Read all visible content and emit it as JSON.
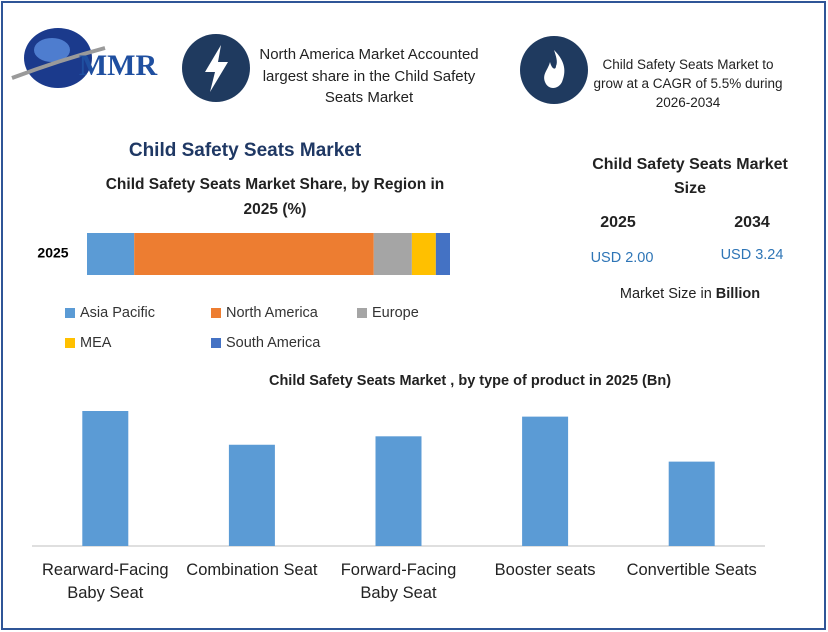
{
  "header": {
    "logo": "MMR",
    "highlights": [
      {
        "text": "North America Market Accounted largest share in the Child Safety Seats Market"
      },
      {
        "text": "Child Safety Seats Market to grow at a CAGR of 5.5% during 2026-2034"
      }
    ]
  },
  "main_title": "Child Safety Seats Market",
  "market_size": {
    "title": "Child Safety Seats Market Size",
    "years": [
      "2025",
      "2034"
    ],
    "values": [
      "USD 2.00",
      "USD 3.24"
    ],
    "note": "Market Size in",
    "unit": "Billion"
  },
  "chart_data": [
    {
      "type": "stacked-bar",
      "title": "Child Safety Seats Market Share, by Region in 2025 (%)",
      "categories": [
        "2025"
      ],
      "series": [
        {
          "name": "Asia Pacific",
          "color": "#5b9bd5",
          "values": [
            13
          ]
        },
        {
          "name": "North America",
          "color": "#ed7d31",
          "values": [
            66
          ]
        },
        {
          "name": "Europe",
          "color": "#a5a5a5",
          "values": [
            10.5
          ]
        },
        {
          "name": "MEA",
          "color": "#ffc000",
          "values": [
            6.6
          ]
        },
        {
          "name": "South America",
          "color": "#4472c4",
          "values": [
            3.9
          ]
        }
      ]
    },
    {
      "type": "bar",
      "title": "Child Safety Seats Market , by type of product in 2025 (Bn)",
      "categories": [
        "Rearward-Facing Baby Seat",
        "Combination Seat",
        "Forward-Facing Baby Seat",
        "Booster seats",
        "Convertible Seats"
      ],
      "values": [
        0.48,
        0.36,
        0.39,
        0.46,
        0.3
      ],
      "color": "#5b9bd5"
    }
  ]
}
